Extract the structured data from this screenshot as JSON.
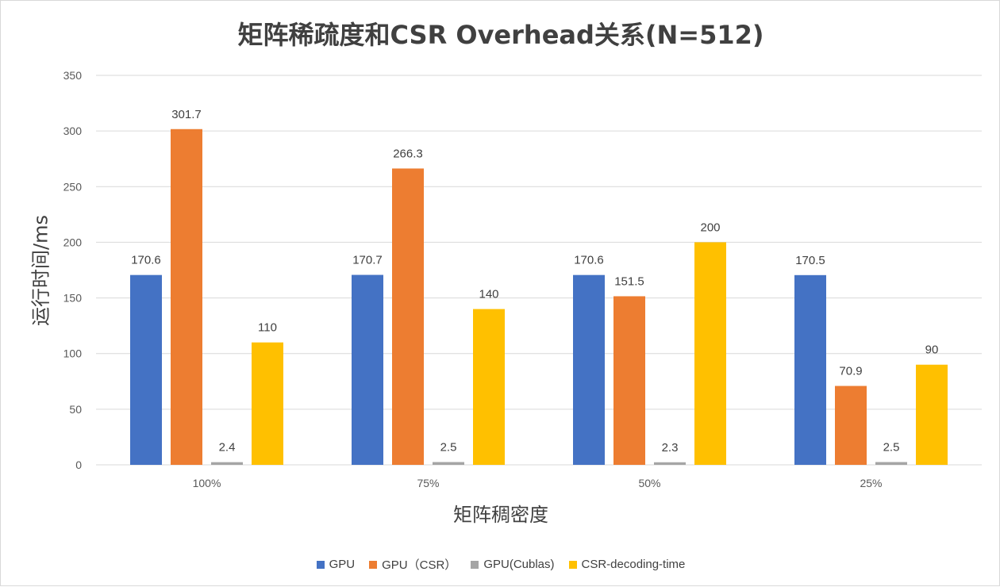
{
  "chart_data": {
    "type": "bar",
    "title": "矩阵稀疏度和CSR Overhead关系(N=512)",
    "xlabel": "矩阵稠密度",
    "ylabel": "运行时间/ms",
    "categories": [
      "100%",
      "75%",
      "50%",
      "25%"
    ],
    "ylim": [
      0,
      350
    ],
    "yticks": [
      0,
      50,
      100,
      150,
      200,
      250,
      300,
      350
    ],
    "grid": true,
    "legend_position": "bottom",
    "series": [
      {
        "name": "GPU",
        "color": "#4472c4",
        "values": [
          170.6,
          170.7,
          170.6,
          170.5
        ]
      },
      {
        "name": "GPU（CSR）",
        "color": "#ed7d31",
        "values": [
          301.7,
          266.3,
          151.5,
          70.9
        ]
      },
      {
        "name": "GPU(Cublas)",
        "color": "#a5a5a5",
        "values": [
          2.4,
          2.5,
          2.3,
          2.5
        ]
      },
      {
        "name": "CSR-decoding-time",
        "color": "#ffc000",
        "values": [
          110,
          140,
          200,
          90
        ]
      }
    ]
  }
}
